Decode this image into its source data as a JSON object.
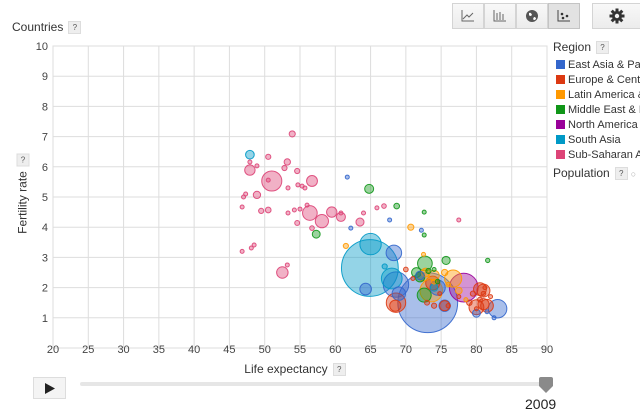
{
  "toolbar": {
    "buttons": [
      {
        "name": "line-chart-icon",
        "active": false
      },
      {
        "name": "bar-chart-icon",
        "active": false
      },
      {
        "name": "map-icon",
        "active": false
      },
      {
        "name": "bubble-chart-icon",
        "active": true
      }
    ],
    "settings_icon": "gear-icon"
  },
  "entity_label": "Countries",
  "help": "?",
  "legend": {
    "color_title": "Region",
    "size_title": "Population",
    "items": [
      {
        "label": "East Asia & Pacific",
        "color": "#3366cc"
      },
      {
        "label": "Europe & Central Asia",
        "color": "#dc3912"
      },
      {
        "label": "Latin America & Caribbean",
        "color": "#ff9900"
      },
      {
        "label": "Middle East & North Africa",
        "color": "#109618"
      },
      {
        "label": "North America",
        "color": "#990099"
      },
      {
        "label": "South Asia",
        "color": "#0099c6"
      },
      {
        "label": "Sub-Saharan Africa",
        "color": "#dd4477"
      }
    ]
  },
  "chart_data": {
    "type": "scatter",
    "xlabel": "Life expectancy",
    "ylabel": "Fertility rate",
    "xlim": [
      20,
      90
    ],
    "ylim": [
      0,
      10
    ],
    "xticks": [
      "20",
      "25",
      "30",
      "35",
      "40",
      "45",
      "50",
      "55",
      "60",
      "65",
      "70",
      "75",
      "80",
      "85",
      "90"
    ],
    "yticks": [
      "1",
      "2",
      "3",
      "4",
      "5",
      "6",
      "7",
      "8",
      "9",
      "10"
    ],
    "grid": true,
    "legend_position": "right",
    "size_by": "Population",
    "color_by": "Region",
    "point_fields": [
      "region_index",
      "life_expectancy",
      "fertility_rate",
      "population_millions"
    ],
    "points": [
      [
        0,
        73.1,
        1.5,
        1330
      ],
      [
        5,
        64.9,
        2.65,
        1200
      ],
      [
        4,
        78.2,
        2.0,
        307
      ],
      [
        0,
        68.6,
        2.1,
        240
      ],
      [
        2,
        73.6,
        1.9,
        190
      ],
      [
        5,
        65.0,
        3.44,
        170
      ],
      [
        6,
        51.0,
        5.53,
        150
      ],
      [
        1,
        68.6,
        1.5,
        140
      ],
      [
        5,
        68.0,
        2.3,
        160
      ],
      [
        0,
        83.0,
        1.3,
        127
      ],
      [
        2,
        76.7,
        2.3,
        110
      ],
      [
        0,
        68.3,
        3.15,
        90
      ],
      [
        3,
        72.7,
        2.8,
        80
      ],
      [
        6,
        56.4,
        4.47,
        80
      ],
      [
        0,
        74.5,
        2.0,
        87
      ],
      [
        3,
        72.6,
        1.75,
        73
      ],
      [
        1,
        73.8,
        2.15,
        72
      ],
      [
        6,
        58.1,
        4.2,
        65
      ],
      [
        1,
        80.0,
        1.35,
        82
      ],
      [
        1,
        81.0,
        1.9,
        62
      ],
      [
        1,
        80.5,
        1.95,
        61
      ],
      [
        1,
        81.5,
        1.4,
        60
      ],
      [
        0,
        69.0,
        1.8,
        67
      ],
      [
        6,
        56.7,
        5.53,
        44
      ],
      [
        6,
        52.5,
        2.5,
        49
      ],
      [
        0,
        64.3,
        1.95,
        50
      ],
      [
        2,
        72.5,
        2.4,
        45
      ],
      [
        1,
        81.0,
        1.45,
        46
      ],
      [
        6,
        47.9,
        5.89,
        40
      ],
      [
        3,
        71.5,
        2.5,
        35
      ],
      [
        1,
        75.5,
        1.4,
        38
      ],
      [
        2,
        74.0,
        2.4,
        40
      ],
      [
        6,
        59.5,
        4.5,
        40
      ],
      [
        3,
        72.0,
        2.35,
        35
      ],
      [
        0,
        75.5,
        1.4,
        48
      ],
      [
        6,
        60.8,
        4.34,
        30
      ],
      [
        5,
        47.9,
        6.4,
        28
      ],
      [
        3,
        64.8,
        5.27,
        30
      ],
      [
        1,
        68.5,
        1.4,
        46
      ],
      [
        6,
        63.5,
        4.17,
        24
      ],
      [
        3,
        57.3,
        3.77,
        23
      ],
      [
        0,
        72.0,
        2.4,
        28
      ],
      [
        2,
        72.8,
        2.5,
        29
      ],
      [
        6,
        48.9,
        5.07,
        20
      ],
      [
        6,
        53.2,
        6.16,
        15
      ],
      [
        6,
        53.9,
        7.09,
        14
      ],
      [
        6,
        50.5,
        6.33,
        10
      ],
      [
        6,
        52.8,
        5.96,
        10
      ],
      [
        6,
        54.6,
        5.86,
        10
      ],
      [
        6,
        49.5,
        4.54,
        10
      ],
      [
        6,
        50.5,
        4.57,
        12
      ],
      [
        6,
        54.6,
        4.14,
        9
      ],
      [
        6,
        56.7,
        3.97,
        8
      ],
      [
        6,
        48.9,
        6.03,
        6
      ],
      [
        6,
        47.9,
        6.16,
        6
      ],
      [
        6,
        50.5,
        5.56,
        5
      ],
      [
        6,
        53.3,
        5.3,
        6
      ],
      [
        6,
        54.7,
        5.4,
        5
      ],
      [
        6,
        55.3,
        5.36,
        4
      ],
      [
        6,
        55.7,
        5.3,
        4
      ],
      [
        6,
        47.0,
        5.0,
        4
      ],
      [
        6,
        47.3,
        5.1,
        3
      ],
      [
        6,
        46.8,
        4.67,
        3
      ],
      [
        6,
        54.2,
        4.57,
        5
      ],
      [
        6,
        55.0,
        4.6,
        4
      ],
      [
        6,
        56.0,
        4.73,
        4
      ],
      [
        6,
        53.3,
        4.47,
        5
      ],
      [
        6,
        60.8,
        4.47,
        4
      ],
      [
        6,
        65.9,
        4.64,
        5
      ],
      [
        6,
        66.9,
        4.7,
        8
      ],
      [
        6,
        64.0,
        4.47,
        6
      ],
      [
        6,
        48.1,
        3.31,
        3
      ],
      [
        6,
        48.5,
        3.41,
        3
      ],
      [
        6,
        46.8,
        3.2,
        2
      ],
      [
        6,
        53.2,
        2.75,
        2
      ],
      [
        6,
        77.5,
        4.24,
        2
      ],
      [
        0,
        61.7,
        5.66,
        1
      ],
      [
        0,
        62.2,
        3.97,
        6
      ],
      [
        0,
        67.7,
        4.24,
        3
      ],
      [
        0,
        72.2,
        3.9,
        2
      ],
      [
        2,
        61.5,
        3.38,
        10
      ],
      [
        2,
        70.7,
        4.0,
        14
      ],
      [
        3,
        68.7,
        4.7,
        12
      ],
      [
        3,
        72.6,
        4.5,
        3
      ],
      [
        3,
        72.6,
        3.74,
        4
      ],
      [
        3,
        75.7,
        2.9,
        25
      ],
      [
        3,
        81.6,
        2.9,
        7
      ],
      [
        3,
        73.2,
        2.55,
        10
      ],
      [
        2,
        72.5,
        3.1,
        6
      ],
      [
        2,
        74.0,
        2.2,
        10
      ],
      [
        2,
        75.5,
        2.5,
        15
      ],
      [
        2,
        76.0,
        2.1,
        8
      ],
      [
        2,
        78.5,
        1.6,
        4
      ],
      [
        1,
        79.5,
        1.8,
        10
      ],
      [
        1,
        80.5,
        1.6,
        9
      ],
      [
        1,
        81.0,
        1.8,
        8
      ],
      [
        1,
        79.0,
        1.5,
        11
      ],
      [
        1,
        80.0,
        1.3,
        5
      ],
      [
        1,
        76.0,
        1.4,
        7
      ],
      [
        1,
        74.0,
        1.4,
        10
      ],
      [
        1,
        73.0,
        1.5,
        9
      ],
      [
        1,
        74.8,
        1.8,
        5
      ],
      [
        1,
        77.5,
        1.7,
        4
      ],
      [
        1,
        82.0,
        1.7,
        5
      ],
      [
        1,
        81.2,
        2.0,
        4
      ],
      [
        1,
        71.0,
        2.3,
        5
      ],
      [
        1,
        70.0,
        2.6,
        8
      ],
      [
        3,
        74.5,
        2.2,
        8
      ],
      [
        3,
        74.0,
        2.6,
        6
      ],
      [
        0,
        81.5,
        1.2,
        5
      ],
      [
        0,
        80.0,
        1.15,
        23
      ],
      [
        0,
        82.5,
        1.0,
        2
      ],
      [
        2,
        77.5,
        1.9,
        17
      ],
      [
        5,
        74.0,
        2.0,
        20
      ],
      [
        5,
        67.0,
        2.7,
        10
      ]
    ]
  },
  "slider": {
    "play_icon": "play-icon",
    "year": "2009",
    "position": 1.0
  }
}
